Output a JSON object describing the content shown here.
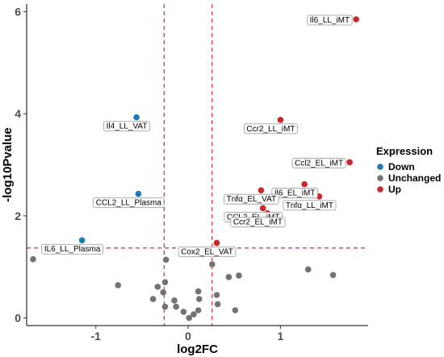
{
  "chart_data": {
    "type": "scatter",
    "xlabel": "log2FC",
    "ylabel": "-log10Pvalue",
    "xlim": [
      -1.75,
      1.95
    ],
    "ylim": [
      -0.15,
      6.15
    ],
    "x_ticks": [
      -1,
      0,
      1
    ],
    "x_tick_labels": [
      "-1",
      "0",
      "1"
    ],
    "y_ticks": [
      0,
      2,
      4,
      6
    ],
    "y_tick_labels": [
      "0",
      "2",
      "4",
      "6"
    ],
    "grid": false,
    "thresholds": {
      "x": [
        -0.26,
        0.26
      ],
      "y": 1.37
    },
    "legend": {
      "title": "Expression",
      "position": "right",
      "entries": [
        {
          "name": "Down",
          "color": "#1f78b4"
        },
        {
          "name": "Unchanged",
          "color": "#737373"
        },
        {
          "name": "Up",
          "color": "#c8282a"
        }
      ]
    },
    "colors": {
      "Down": "#1f78b4",
      "Unchanged": "#737373",
      "Up": "#c8282a",
      "threshold_line": "#e8242a"
    },
    "labeled_points": [
      {
        "label": "Il6_LL_iMT",
        "x": 1.82,
        "y": 5.85,
        "group": "Up"
      },
      {
        "label": "Il4_LL_VAT",
        "x": -0.56,
        "y": 3.93,
        "group": "Down"
      },
      {
        "label": "Ccr2_LL_iMT",
        "x": 1.0,
        "y": 3.88,
        "group": "Up"
      },
      {
        "label": "Ccl2_EL_iMT",
        "x": 1.75,
        "y": 3.05,
        "group": "Up"
      },
      {
        "label": "Il6_EL_iMT",
        "x": 1.26,
        "y": 2.62,
        "group": "Up"
      },
      {
        "label": "Tnfα_EL_VAT",
        "x": 0.79,
        "y": 2.5,
        "group": "Up"
      },
      {
        "label": "CCL2_LL_Plasma",
        "x": -0.54,
        "y": 2.43,
        "group": "Down"
      },
      {
        "label": "Tnfα_LL_iMT",
        "x": 1.42,
        "y": 2.38,
        "group": "Up"
      },
      {
        "label": "CCL2_EL_iMT",
        "x": 0.81,
        "y": 2.15,
        "group": "Up"
      },
      {
        "label": "Ccr2_EL_iMT",
        "x": 0.86,
        "y": 2.05,
        "group": "Up"
      },
      {
        "label": "IL6_LL_Plasma",
        "x": -1.15,
        "y": 1.52,
        "group": "Down"
      },
      {
        "label": "Cox2_EL_VAT",
        "x": 0.31,
        "y": 1.47,
        "group": "Up"
      }
    ],
    "unchanged_points": [
      {
        "x": -1.68,
        "y": 1.15
      },
      {
        "x": -0.76,
        "y": 0.64
      },
      {
        "x": -0.24,
        "y": 1.14
      },
      {
        "x": -0.33,
        "y": 0.61
      },
      {
        "x": -0.25,
        "y": 0.7
      },
      {
        "x": -0.27,
        "y": 0.5
      },
      {
        "x": -0.38,
        "y": 0.37
      },
      {
        "x": -0.25,
        "y": 0.22
      },
      {
        "x": -0.15,
        "y": 0.34
      },
      {
        "x": -0.13,
        "y": 0.22
      },
      {
        "x": -0.05,
        "y": 0.12
      },
      {
        "x": 0.01,
        "y": 0.0
      },
      {
        "x": 0.06,
        "y": 0.07
      },
      {
        "x": 0.11,
        "y": 0.52
      },
      {
        "x": 0.12,
        "y": 0.37
      },
      {
        "x": 0.11,
        "y": 0.15
      },
      {
        "x": 0.26,
        "y": 1.05
      },
      {
        "x": 0.31,
        "y": 0.45
      },
      {
        "x": 0.32,
        "y": 0.27
      },
      {
        "x": 0.44,
        "y": 0.8
      },
      {
        "x": 0.55,
        "y": 0.83
      },
      {
        "x": 0.51,
        "y": 0.15
      },
      {
        "x": 1.3,
        "y": 0.95
      },
      {
        "x": 1.57,
        "y": 0.84
      }
    ]
  }
}
